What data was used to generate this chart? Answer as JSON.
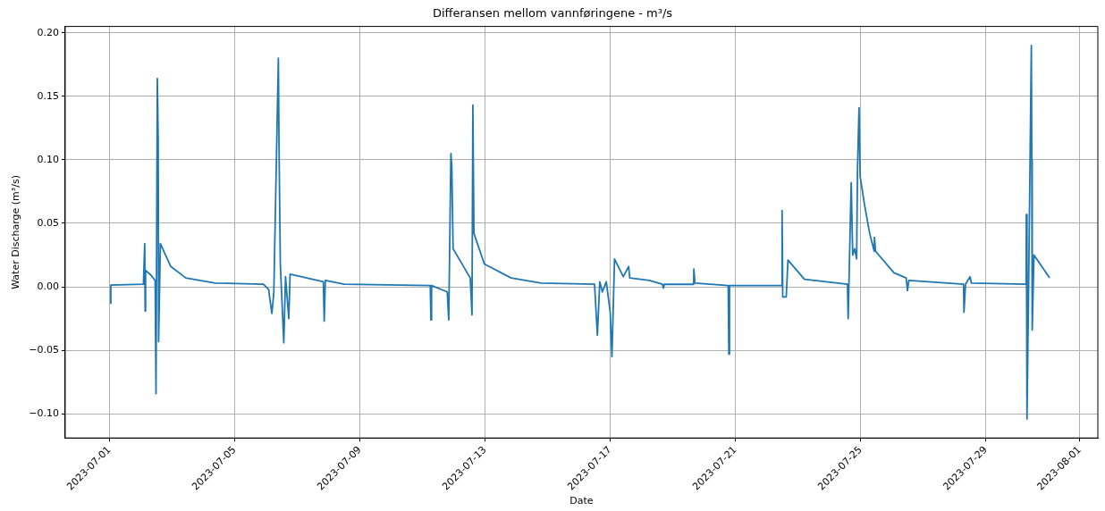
{
  "chart_data": {
    "type": "line",
    "title": "Differansen mellom vannføringene - m³/s",
    "xlabel": "Date",
    "ylabel": "Water Discharge (m³/s)",
    "x": [
      "2023-07-01T00:30",
      "2023-07-01T01:00",
      "2023-07-02T02:00",
      "2023-07-02T03:00",
      "2023-07-02T03:20",
      "2023-07-02T03:40",
      "2023-07-02T08:00",
      "2023-07-02T11:00",
      "2023-07-02T11:40",
      "2023-07-02T12:40",
      "2023-07-02T13:20",
      "2023-07-02T13:40",
      "2023-07-02T15:00",
      "2023-07-02T23:00",
      "2023-07-03T10:30",
      "2023-07-04T09:00",
      "2023-07-05T22:00",
      "2023-07-06T02:00",
      "2023-07-06T04:30",
      "2023-07-06T06:00",
      "2023-07-06T09:30",
      "2023-07-06T10:00",
      "2023-07-06T11:00",
      "2023-07-06T13:40",
      "2023-07-06T15:00",
      "2023-07-06T17:30",
      "2023-07-06T18:30",
      "2023-07-07T20:00",
      "2023-07-07T20:40",
      "2023-07-07T21:30",
      "2023-07-08T12:00",
      "2023-07-11T06:00",
      "2023-07-11T06:30",
      "2023-07-11T07:00",
      "2023-07-11T19:00",
      "2023-07-11T20:10",
      "2023-07-11T21:50",
      "2023-07-11T22:30",
      "2023-07-11T23:30",
      "2023-07-12T12:40",
      "2023-07-12T14:00",
      "2023-07-12T14:40",
      "2023-07-12T15:30",
      "2023-07-12T23:30",
      "2023-07-13T20:00",
      "2023-07-14T19:00",
      "2023-07-16T12:00",
      "2023-07-16T14:10",
      "2023-07-16T16:00",
      "2023-07-16T18:00",
      "2023-07-16T21:00",
      "2023-07-17T00:00",
      "2023-07-17T01:20",
      "2023-07-17T03:20",
      "2023-07-17T10:00",
      "2023-07-17T14:10",
      "2023-07-17T15:00",
      "2023-07-18T06:00",
      "2023-07-18T16:00",
      "2023-07-18T16:50",
      "2023-07-18T17:30",
      "2023-07-19T16:00",
      "2023-07-19T16:10",
      "2023-07-19T17:00",
      "2023-07-20T18:30",
      "2023-07-20T19:00",
      "2023-07-20T19:30",
      "2023-07-22T11:30",
      "2023-07-22T11:50",
      "2023-07-22T12:20",
      "2023-07-22T15:00",
      "2023-07-22T16:20",
      "2023-07-23T05:00",
      "2023-07-24T14:00",
      "2023-07-24T14:30",
      "2023-07-24T16:50",
      "2023-07-24T18:00",
      "2023-07-24T19:30",
      "2023-07-24T21:00",
      "2023-07-24T21:40",
      "2023-07-24T22:50",
      "2023-07-24T23:40",
      "2023-07-25T03:00",
      "2023-07-25T07:00",
      "2023-07-25T10:30",
      "2023-07-25T10:40",
      "2023-07-25T11:30",
      "2023-07-26T01:40",
      "2023-07-26T11:00",
      "2023-07-26T12:00",
      "2023-07-26T13:00",
      "2023-07-28T07:00",
      "2023-07-28T07:20",
      "2023-07-28T08:30",
      "2023-07-28T12:00",
      "2023-07-28T13:00",
      "2023-07-30T07:00",
      "2023-07-30T07:10",
      "2023-07-30T07:40",
      "2023-07-30T09:00",
      "2023-07-30T11:00",
      "2023-07-30T11:20",
      "2023-07-30T11:40",
      "2023-07-30T13:00",
      "2023-07-31T01:00"
    ],
    "series": [
      {
        "color": "#1f77b4",
        "values": [
          -0.013,
          0.0014,
          0.002,
          0.034,
          -0.019,
          0.013,
          0.009,
          0.005,
          -0.084,
          0.164,
          0.115,
          -0.043,
          0.034,
          0.016,
          0.007,
          0.003,
          0.002,
          -0.002,
          -0.021,
          -0.005,
          0.18,
          0.112,
          0.018,
          -0.044,
          0.008,
          -0.025,
          0.01,
          0.004,
          -0.027,
          0.005,
          0.002,
          0.001,
          -0.026,
          0.001,
          -0.004,
          -0.026,
          0.105,
          0.095,
          0.03,
          0.007,
          -0.022,
          0.143,
          0.042,
          0.018,
          0.007,
          0.003,
          0.002,
          -0.038,
          0.004,
          -0.004,
          0.004,
          -0.02,
          -0.055,
          0.022,
          0.008,
          0.016,
          0.007,
          0.005,
          0.002,
          -0.001,
          0.002,
          0.002,
          0.014,
          0.003,
          0.001,
          -0.053,
          0.001,
          0.001,
          0.06,
          -0.008,
          -0.008,
          0.021,
          0.006,
          0.002,
          -0.025,
          0.082,
          0.025,
          0.03,
          0.022,
          0.093,
          0.141,
          0.087,
          0.065,
          0.042,
          0.028,
          0.039,
          0.028,
          0.011,
          0.007,
          -0.003,
          0.005,
          0.002,
          -0.02,
          0.002,
          0.008,
          0.003,
          0.002,
          0.057,
          -0.104,
          0.008,
          0.19,
          0.1,
          -0.034,
          0.025,
          0.007
        ]
      }
    ],
    "xlim": [
      "2023-06-29T14:00",
      "2023-08-01T14:00"
    ],
    "xticks": [
      "2023-07-01",
      "2023-07-05",
      "2023-07-09",
      "2023-07-13",
      "2023-07-17",
      "2023-07-21",
      "2023-07-25",
      "2023-07-29",
      "2023-08-01"
    ],
    "ylim": [
      -0.119,
      0.205
    ],
    "yticks": [
      {
        "value": -0.1,
        "label": "−0.10"
      },
      {
        "value": -0.05,
        "label": "−0.05"
      },
      {
        "value": 0,
        "label": "0.00"
      },
      {
        "value": 0.05,
        "label": "0.05"
      },
      {
        "value": 0.1,
        "label": "0.10"
      },
      {
        "value": 0.15,
        "label": "0.15"
      },
      {
        "value": 0.2,
        "label": "0.20"
      }
    ],
    "grid": true,
    "marker": "none",
    "line_style": "solid"
  }
}
